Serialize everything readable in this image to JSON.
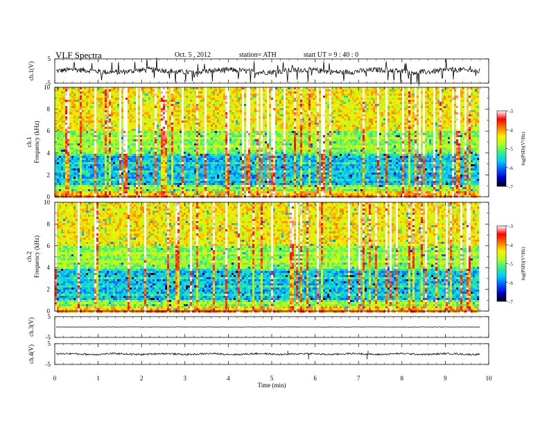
{
  "header": {
    "title": "VLF  Spectra",
    "date": "Oct. 5  , 2012",
    "station": "station= ATH",
    "start": "start  UT  =   9  : 40 : 0"
  },
  "colors": {
    "colorbar_stops": [
      "#000000",
      "#0000cc",
      "#0055ff",
      "#00ccff",
      "#33ee88",
      "#aaff22",
      "#ffee00",
      "#ff7700",
      "#ff0000",
      "#ffffff"
    ],
    "trace": "#000000"
  },
  "chart_data": [
    {
      "type": "line",
      "panel": "ch1-waveform",
      "ylabel": "ch.1(V)",
      "ylim": [
        -5,
        5
      ],
      "yticks": [
        "5",
        "-5"
      ],
      "note": "noisy waveform near 0 V with frequent spikes"
    },
    {
      "type": "heatmap",
      "panel": "ch1-spectrogram",
      "ylabel_top": "ch.1",
      "ylabel": "Frequency  (kHz)",
      "ylim": [
        0,
        10
      ],
      "yticks": [
        "0",
        "2",
        "4",
        "6",
        "8",
        "10"
      ],
      "xlim": [
        0,
        10
      ],
      "colorbar": {
        "label": "log(PSD)(V²/Hz)",
        "range": [
          -7,
          -3
        ],
        "ticks": [
          "-3",
          "-4",
          "-5",
          "-6",
          "-7"
        ]
      }
    },
    {
      "type": "heatmap",
      "panel": "ch2-spectrogram",
      "ylabel_top": "ch.2",
      "ylabel": "Frequency  (kHz)",
      "ylim": [
        0,
        10
      ],
      "yticks": [
        "0",
        "2",
        "4",
        "6",
        "8",
        "10"
      ],
      "xlim": [
        0,
        10
      ],
      "colorbar": {
        "label": "log(PSD)(V²/Hz)",
        "range": [
          -7,
          -3
        ],
        "ticks": [
          "-3",
          "-4",
          "-5",
          "-6",
          "-7"
        ]
      }
    },
    {
      "type": "line",
      "panel": "ch3-waveform",
      "ylabel": "ch.3(V)",
      "ylim": [
        -5,
        5
      ],
      "yticks": [
        "5",
        "-5"
      ],
      "note": "flat line near 0 V"
    },
    {
      "type": "line",
      "panel": "ch4-waveform",
      "ylabel": "ch.4(V)",
      "ylim": [
        -5,
        5
      ],
      "yticks": [
        "5",
        "-5"
      ],
      "note": "waveform near 0 V with spikes near 5.4, 5.8 and 7.2 min"
    }
  ],
  "xaxis": {
    "label": "Time  (min)",
    "ticks": [
      "0",
      "1",
      "2",
      "3",
      "4",
      "5",
      "6",
      "7",
      "8",
      "9",
      "10"
    ],
    "range": [
      0,
      10
    ],
    "data_end": 9.8
  }
}
